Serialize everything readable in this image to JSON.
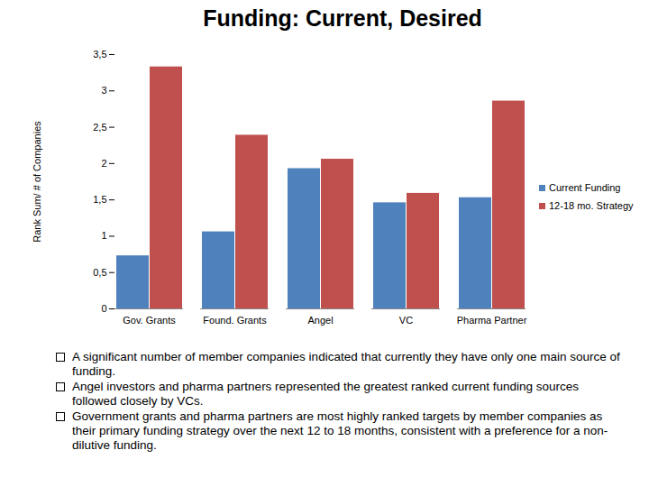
{
  "chart_data": {
    "type": "bar",
    "title": "Funding: Current, Desired",
    "y_label": "Rank Sum/ # of Companies",
    "categories": [
      "Gov. Grants",
      "Found. Grants",
      "Angel",
      "VC",
      "Pharma Partner"
    ],
    "series": [
      {
        "name": "Current Funding",
        "color": "#4f81bd",
        "values": [
          0.73,
          1.06,
          1.93,
          1.46,
          1.53
        ]
      },
      {
        "name": "12-18 mo. Strategy",
        "color": "#c0504d",
        "values": [
          3.33,
          2.39,
          2.06,
          1.59,
          2.86
        ]
      }
    ],
    "ylim": [
      0,
      3.5
    ],
    "yticks": [
      0,
      {
        "value": 0.5,
        "label": "0,5"
      },
      1,
      {
        "value": 1.5,
        "label": "1,5"
      },
      2,
      {
        "value": 2.5,
        "label": "2,5"
      },
      3,
      {
        "value": 3.5,
        "label": "3,5"
      }
    ],
    "grid": false,
    "legend": "right",
    "annotations": [
      "A significant number of member companies indicated that currently they have only one main source of funding.",
      "Angel investors and pharma partners represented the greatest ranked current funding sources followed closely by VCs.",
      "Government grants and pharma partners are most highly ranked targets by member companies as their primary funding strategy over the next 12 to 18 months, consistent with a preference for a non-dilutive funding."
    ]
  }
}
